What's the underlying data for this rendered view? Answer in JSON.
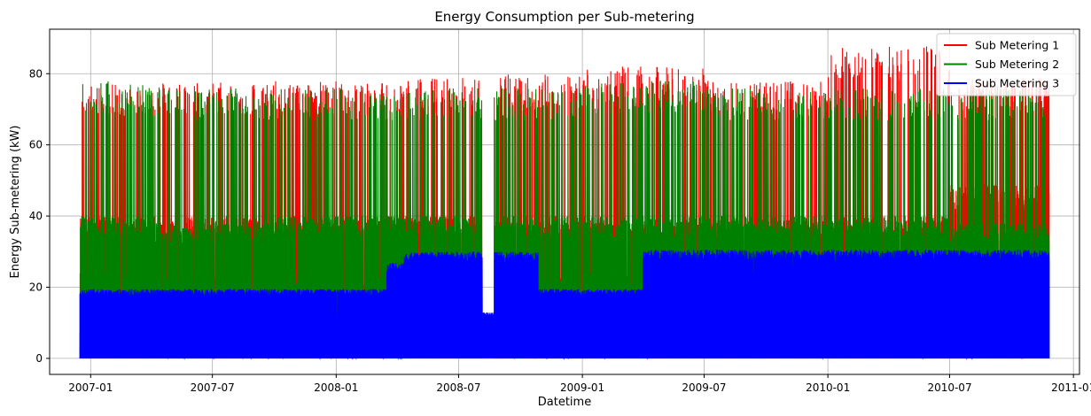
{
  "chart_data": {
    "type": "line",
    "title": "Energy Consumption per Sub-metering",
    "xlabel": "Datetime",
    "ylabel": "Energy Sub-metering (kW)",
    "xlim": [
      "2006-11-01",
      "2011-01-10"
    ],
    "ylim": [
      -4.5,
      92.5
    ],
    "grid": true,
    "legend_position": "top-right",
    "xticks": [
      "2007-01",
      "2007-07",
      "2008-01",
      "2008-07",
      "2009-01",
      "2009-07",
      "2010-01",
      "2010-07",
      "2011-01"
    ],
    "yticks": [
      0,
      20,
      40,
      60,
      80
    ],
    "data_range": [
      "2006-12-16",
      "2010-11-26"
    ],
    "gaps": [
      [
        "2008-08-05",
        "2008-08-22"
      ]
    ],
    "series": [
      {
        "name": "Sub Metering 1",
        "color": "#ff0000",
        "periods": [
          {
            "start": "2006-12-16",
            "end": "2007-03-31",
            "typical_max": 40,
            "peak_max": 77
          },
          {
            "start": "2007-04-01",
            "end": "2007-09-30",
            "typical_max": 40,
            "peak_max": 78
          },
          {
            "start": "2007-10-01",
            "end": "2008-03-31",
            "typical_max": 40,
            "peak_max": 78
          },
          {
            "start": "2008-04-01",
            "end": "2008-08-04",
            "typical_max": 40,
            "peak_max": 79
          },
          {
            "start": "2008-08-23",
            "end": "2008-12-31",
            "typical_max": 40,
            "peak_max": 80
          },
          {
            "start": "2009-01-01",
            "end": "2009-06-30",
            "typical_max": 39,
            "peak_max": 82
          },
          {
            "start": "2009-07-01",
            "end": "2009-12-31",
            "typical_max": 39,
            "peak_max": 78
          },
          {
            "start": "2010-01-01",
            "end": "2010-06-30",
            "typical_max": 40,
            "peak_max": 88
          },
          {
            "start": "2010-07-01",
            "end": "2010-11-26",
            "typical_max": 49,
            "peak_max": 79
          }
        ]
      },
      {
        "name": "Sub Metering 2",
        "color": "#008000",
        "periods": [
          {
            "start": "2006-12-16",
            "end": "2007-03-31",
            "typical_max": 40,
            "peak_max": 78
          },
          {
            "start": "2007-04-01",
            "end": "2007-09-30",
            "typical_max": 38,
            "peak_max": 76
          },
          {
            "start": "2007-10-01",
            "end": "2008-03-31",
            "typical_max": 40,
            "peak_max": 76
          },
          {
            "start": "2008-04-01",
            "end": "2008-08-04",
            "typical_max": 40,
            "peak_max": 76
          },
          {
            "start": "2008-08-23",
            "end": "2008-12-31",
            "typical_max": 40,
            "peak_max": 76
          },
          {
            "start": "2009-01-01",
            "end": "2009-06-30",
            "typical_max": 40,
            "peak_max": 78
          },
          {
            "start": "2009-07-01",
            "end": "2009-12-31",
            "typical_max": 40,
            "peak_max": 76
          },
          {
            "start": "2010-01-01",
            "end": "2010-06-30",
            "typical_max": 40,
            "peak_max": 76
          },
          {
            "start": "2010-07-01",
            "end": "2010-11-26",
            "typical_max": 38,
            "peak_max": 76
          }
        ]
      },
      {
        "name": "Sub Metering 3",
        "color": "#0000ff",
        "periods": [
          {
            "start": "2006-12-16",
            "end": "2008-03-15",
            "typical_max": 19.5
          },
          {
            "start": "2008-03-16",
            "end": "2008-04-10",
            "typical_max": 27
          },
          {
            "start": "2008-04-11",
            "end": "2008-08-04",
            "typical_max": 30
          },
          {
            "start": "2008-08-05",
            "end": "2008-08-22",
            "typical_max": 13
          },
          {
            "start": "2008-08-23",
            "end": "2008-10-26",
            "typical_max": 30
          },
          {
            "start": "2008-10-27",
            "end": "2009-03-31",
            "typical_max": 19.5
          },
          {
            "start": "2009-04-01",
            "end": "2010-06-30",
            "typical_max": 30.5
          },
          {
            "start": "2010-07-01",
            "end": "2010-08-15",
            "typical_max": 30.5
          },
          {
            "start": "2010-08-16",
            "end": "2010-11-26",
            "typical_max": 30.5
          }
        ]
      }
    ]
  }
}
